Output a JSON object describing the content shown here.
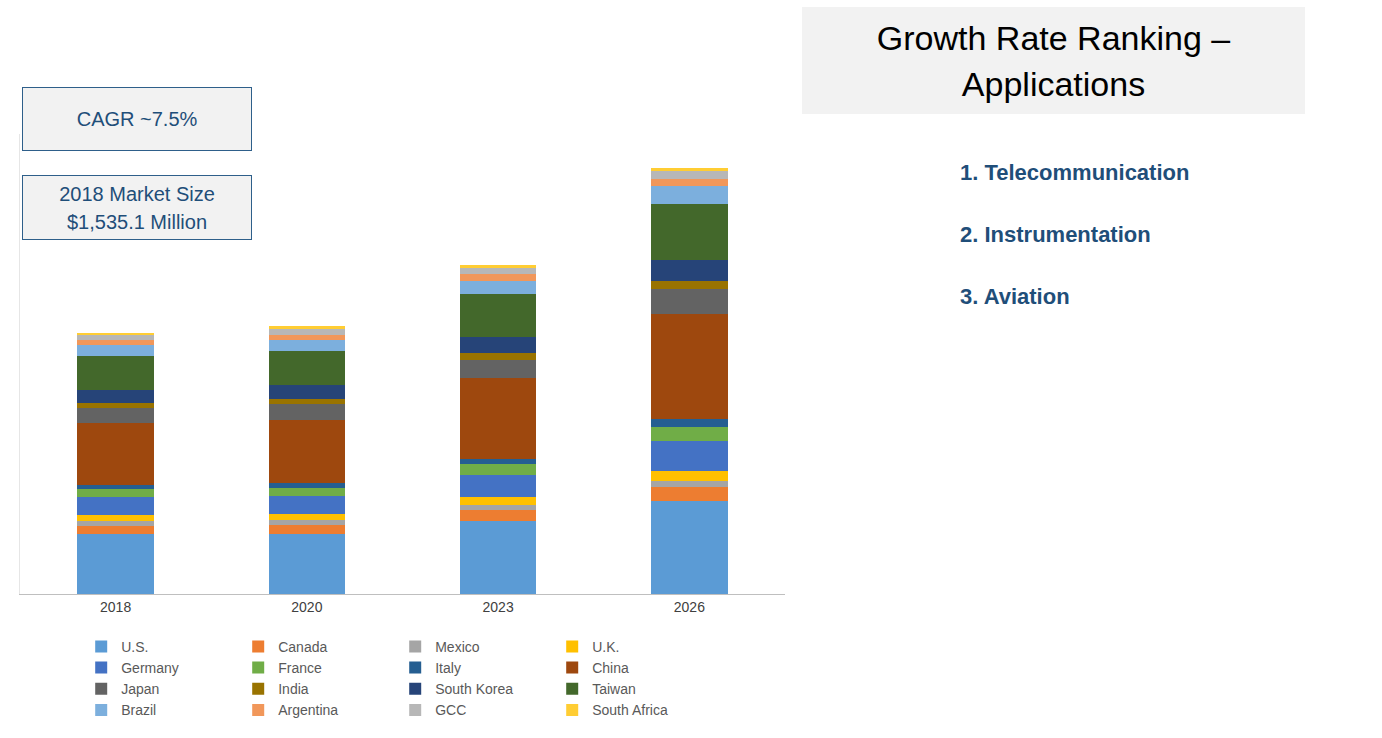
{
  "chart_data": {
    "type": "bar",
    "stacked": true,
    "categories": [
      "2018",
      "2020",
      "2023",
      "2026"
    ],
    "series": [
      {
        "name": "U.S.",
        "color": "#5b9bd5",
        "values": [
          353,
          353,
          428,
          544
        ]
      },
      {
        "name": "Canada",
        "color": "#ed7d31",
        "values": [
          46,
          52,
          64,
          87
        ]
      },
      {
        "name": "Mexico",
        "color": "#a5a5a5",
        "values": [
          29,
          29,
          29,
          35
        ]
      },
      {
        "name": "U.K.",
        "color": "#ffc000",
        "values": [
          35,
          35,
          46,
          58
        ]
      },
      {
        "name": "Germany",
        "color": "#4472c4",
        "values": [
          104,
          104,
          133,
          174
        ]
      },
      {
        "name": "France",
        "color": "#70ad47",
        "values": [
          52,
          52,
          64,
          81
        ]
      },
      {
        "name": "Italy",
        "color": "#255e91",
        "values": [
          23,
          29,
          29,
          46
        ]
      },
      {
        "name": "China",
        "color": "#9e480e",
        "values": [
          359,
          370,
          475,
          620
        ]
      },
      {
        "name": "Japan",
        "color": "#636363",
        "values": [
          93,
          93,
          104,
          145
        ]
      },
      {
        "name": "India",
        "color": "#997300",
        "values": [
          29,
          29,
          41,
          46
        ]
      },
      {
        "name": "South Korea",
        "color": "#264478",
        "values": [
          75,
          81,
          93,
          122
        ]
      },
      {
        "name": "Taiwan",
        "color": "#43682b",
        "values": [
          197,
          197,
          255,
          330
        ]
      },
      {
        "name": "Brazil",
        "color": "#7cafdd",
        "values": [
          69,
          64,
          75,
          104
        ]
      },
      {
        "name": "Argentina",
        "color": "#f1975a",
        "values": [
          29,
          35,
          41,
          46
        ]
      },
      {
        "name": "GCC",
        "color": "#b7b7b7",
        "values": [
          29,
          35,
          35,
          46
        ]
      },
      {
        "name": "South Africa",
        "color": "#ffcd33",
        "values": [
          12,
          17,
          17,
          17
        ]
      }
    ],
    "ylim": [
      0,
      2700
    ],
    "tick_labels": "x",
    "grid": false,
    "legend": "bottom",
    "annotations": [
      [
        "CAGR ~7.5%"
      ],
      [
        "2018 Market Size",
        "$1,535.1 Million"
      ]
    ]
  },
  "sidebar": {
    "title": [
      "Growth Rate Ranking –",
      "Applications"
    ],
    "items": [
      "1. Telecommunication",
      "2. Instrumentation",
      "3. Aviation"
    ]
  }
}
